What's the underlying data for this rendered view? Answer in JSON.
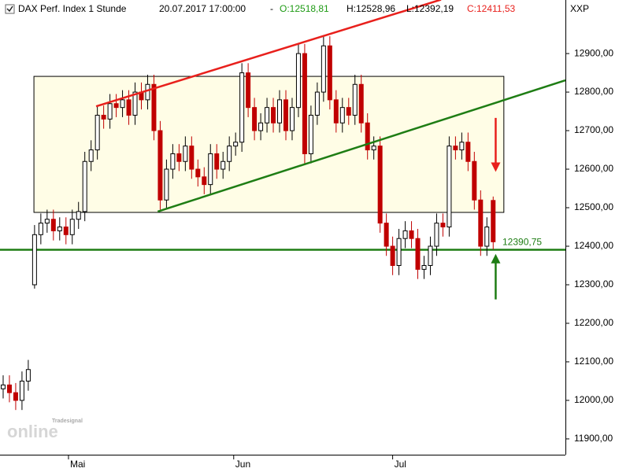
{
  "chart_data": {
    "type": "candlestick",
    "title": "DAX Perf. Index 1 Stunde",
    "datetime": "20.07.2017 17:00:00",
    "separator": "-",
    "quote": {
      "open": "O:12518,81",
      "high": "H:12528,96",
      "low": "L:12392,19",
      "close": "C:12411,53"
    },
    "symbol": "XXP",
    "watermark": {
      "brand": "Tradesignal",
      "product": "online"
    },
    "up_color": "#ffffff",
    "down_color": "#c00000",
    "xlim": [
      -0.5,
      89.5
    ],
    "ylim": [
      11859,
      13039
    ],
    "xticks": [
      {
        "value": 10.4,
        "label": "Mai"
      },
      {
        "value": 36.7,
        "label": "Jun"
      },
      {
        "value": 62.0,
        "label": "Jul"
      }
    ],
    "yticks": [
      {
        "value": 11900,
        "label": "11900,00"
      },
      {
        "value": 12000,
        "label": "12000,00"
      },
      {
        "value": 12100,
        "label": "12100,00"
      },
      {
        "value": 12200,
        "label": "12200,00"
      },
      {
        "value": 12300,
        "label": "12300,00"
      },
      {
        "value": 12400,
        "label": "12400,00"
      },
      {
        "value": 12500,
        "label": "12500,00"
      },
      {
        "value": 12600,
        "label": "12600,00"
      },
      {
        "value": 12700,
        "label": "12700,00"
      },
      {
        "value": 12800,
        "label": "12800,00"
      },
      {
        "value": 12900,
        "label": "12900,00"
      }
    ],
    "open": [
      12030,
      12040,
      12020,
      12000,
      12050,
      12300,
      12430,
      12460,
      12470,
      12440,
      12450,
      12430,
      12470,
      12490,
      12620,
      12650,
      12740,
      12730,
      12770,
      12760,
      12780,
      12740,
      12800,
      12780,
      12820,
      12700,
      12520,
      12600,
      12640,
      12620,
      12660,
      12600,
      12580,
      12560,
      12640,
      12600,
      12620,
      12660,
      12670,
      12850,
      12760,
      12700,
      12720,
      12760,
      12720,
      12780,
      12700,
      12760,
      12900,
      12640,
      12740,
      12800,
      12920,
      12780,
      12720,
      12760,
      12740,
      12820,
      12720,
      12650,
      12660,
      12460,
      12400,
      12350,
      12420,
      12440,
      12420,
      12340,
      12350,
      12400,
      12460,
      12450,
      12660,
      12650,
      12670,
      12620,
      12520,
      12400,
      12518.81
    ],
    "high": [
      12065,
      12065,
      12045,
      12075,
      12105,
      12455,
      12485,
      12495,
      12495,
      12475,
      12475,
      12495,
      12515,
      12645,
      12675,
      12765,
      12765,
      12795,
      12795,
      12805,
      12805,
      12825,
      12825,
      12845,
      12845,
      12725,
      12625,
      12665,
      12665,
      12685,
      12685,
      12625,
      12605,
      12665,
      12665,
      12645,
      12685,
      12695,
      12875,
      12875,
      12785,
      12745,
      12785,
      12785,
      12805,
      12805,
      12785,
      12925,
      12925,
      12765,
      12825,
      12945,
      12945,
      12805,
      12785,
      12785,
      12845,
      12845,
      12745,
      12685,
      12685,
      12485,
      12425,
      12445,
      12465,
      12465,
      12445,
      12375,
      12425,
      12485,
      12485,
      12685,
      12685,
      12695,
      12695,
      12645,
      12545,
      12475,
      12528.96
    ],
    "low": [
      12005,
      11995,
      11975,
      11975,
      12025,
      12290,
      12405,
      12435,
      12415,
      12415,
      12405,
      12405,
      12445,
      12465,
      12595,
      12625,
      12705,
      12705,
      12735,
      12735,
      12715,
      12715,
      12755,
      12755,
      12675,
      12495,
      12495,
      12575,
      12595,
      12595,
      12575,
      12555,
      12535,
      12535,
      12575,
      12575,
      12595,
      12635,
      12645,
      12735,
      12675,
      12675,
      12695,
      12695,
      12695,
      12675,
      12675,
      12735,
      12615,
      12615,
      12715,
      12775,
      12755,
      12695,
      12695,
      12715,
      12715,
      12695,
      12625,
      12625,
      12435,
      12375,
      12325,
      12325,
      12395,
      12395,
      12315,
      12315,
      12325,
      12375,
      12425,
      12425,
      12625,
      12625,
      12595,
      12495,
      12375,
      12375,
      12392.19
    ],
    "close": [
      12040,
      12020,
      12000,
      12050,
      12080,
      12430,
      12460,
      12470,
      12440,
      12450,
      12430,
      12470,
      12490,
      12620,
      12650,
      12740,
      12730,
      12770,
      12760,
      12780,
      12740,
      12800,
      12780,
      12820,
      12700,
      12520,
      12600,
      12640,
      12620,
      12660,
      12600,
      12580,
      12560,
      12640,
      12600,
      12620,
      12660,
      12670,
      12850,
      12760,
      12700,
      12720,
      12760,
      12720,
      12780,
      12700,
      12760,
      12900,
      12640,
      12740,
      12800,
      12920,
      12780,
      12720,
      12760,
      12740,
      12820,
      12720,
      12650,
      12660,
      12460,
      12400,
      12350,
      12420,
      12440,
      12420,
      12340,
      12350,
      12400,
      12460,
      12450,
      12660,
      12650,
      12670,
      12620,
      12520,
      12400,
      12450,
      12411.53
    ],
    "box": {
      "x": [
        4.9,
        79.7
      ],
      "y": [
        12487.8,
        12840.8
      ],
      "fill": "#fffde6"
    },
    "trend_lines": [
      {
        "color": "#e8201c",
        "x": [
          14.8,
          69.7
        ],
        "y": [
          12763,
          13040
        ]
      },
      {
        "color": "#1e7d14",
        "x": [
          24.6,
          89.5
        ],
        "y": [
          12490,
          12830.6
        ]
      }
    ],
    "level": {
      "value": 12390.75,
      "label": "12390,75",
      "color": "#1e7d14"
    },
    "arrows": [
      {
        "color": "#e8201c",
        "x": 78.4,
        "y": [
          12733,
          12593
        ]
      },
      {
        "color": "#1e7d14",
        "x": 78.4,
        "y": [
          12262,
          12380
        ]
      }
    ]
  }
}
